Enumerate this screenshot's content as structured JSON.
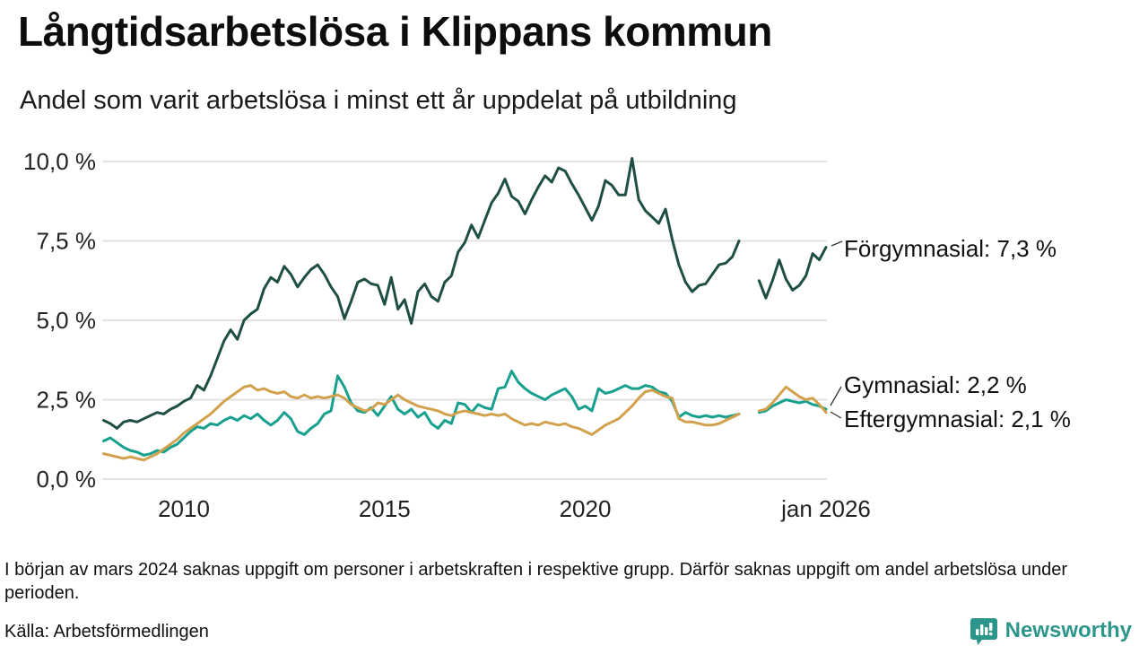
{
  "header": {
    "title": "Långtidsarbetslösa i Klippans kommun",
    "subtitle": "Andel som varit arbetslösa i minst ett år uppdelat på utbildning"
  },
  "chart_data": {
    "type": "line",
    "unit": "%",
    "x_start_year": 2008,
    "x_end_year": 2026,
    "x_step_years": 0.1666667,
    "ylim": [
      0,
      10.5
    ],
    "grid": true,
    "missing_data_period": "mars 2024",
    "x_axis_ticks": [
      {
        "label": "2010",
        "year": 2010
      },
      {
        "label": "2015",
        "year": 2015
      },
      {
        "label": "2020",
        "year": 2020
      },
      {
        "label": "jan 2026",
        "year": 2026
      }
    ],
    "y_axis_ticks": [
      {
        "label": "0,0 %",
        "value": 0
      },
      {
        "label": "2,5 %",
        "value": 2.5
      },
      {
        "label": "5,0 %",
        "value": 5
      },
      {
        "label": "7,5 %",
        "value": 7.5
      },
      {
        "label": "10,0 %",
        "value": 10
      }
    ],
    "series": [
      {
        "name": "Förgymnasial",
        "color": "#1f4f44",
        "end_label": "Förgymnasial: 7,3 %",
        "end_value": 7.3,
        "values": [
          1.85,
          1.75,
          1.6,
          1.8,
          1.85,
          1.8,
          1.9,
          2.0,
          2.1,
          2.05,
          2.2,
          2.3,
          2.45,
          2.55,
          2.95,
          2.8,
          3.25,
          3.8,
          4.35,
          4.7,
          4.4,
          5.0,
          5.2,
          5.35,
          6.0,
          6.35,
          6.2,
          6.7,
          6.45,
          6.05,
          6.35,
          6.6,
          6.75,
          6.45,
          6.05,
          5.75,
          5.05,
          5.6,
          6.2,
          6.3,
          6.15,
          6.1,
          5.5,
          6.35,
          5.35,
          5.65,
          4.9,
          5.9,
          6.15,
          5.75,
          5.6,
          6.2,
          6.4,
          7.15,
          7.45,
          8.0,
          7.6,
          8.15,
          8.7,
          9.0,
          9.45,
          8.9,
          8.75,
          8.35,
          8.8,
          9.2,
          9.55,
          9.35,
          9.8,
          9.7,
          9.3,
          8.95,
          8.55,
          8.15,
          8.6,
          9.4,
          9.25,
          8.95,
          8.95,
          10.1,
          8.8,
          8.45,
          8.25,
          8.05,
          8.5,
          7.55,
          6.75,
          6.2,
          5.9,
          6.1,
          6.15,
          6.45,
          6.75,
          6.8,
          7.0,
          7.5,
          null,
          null,
          6.25,
          5.7,
          6.25,
          6.9,
          6.3,
          5.95,
          6.1,
          6.4,
          7.1,
          6.9,
          7.3
        ]
      },
      {
        "name": "Gymnasial",
        "color": "#18a08e",
        "end_label": "Gymnasial: 2,2 %",
        "end_value": 2.2,
        "values": [
          1.2,
          1.3,
          1.15,
          1.0,
          0.9,
          0.85,
          0.75,
          0.8,
          0.9,
          0.85,
          1.0,
          1.1,
          1.3,
          1.5,
          1.65,
          1.6,
          1.75,
          1.7,
          1.85,
          1.95,
          1.85,
          2.0,
          1.9,
          2.05,
          1.85,
          1.7,
          1.85,
          2.1,
          1.9,
          1.5,
          1.4,
          1.6,
          1.75,
          2.05,
          2.15,
          3.25,
          2.9,
          2.4,
          2.15,
          2.1,
          2.25,
          2.0,
          2.3,
          2.6,
          2.2,
          2.05,
          2.2,
          1.95,
          2.1,
          1.75,
          1.6,
          1.85,
          1.75,
          2.4,
          2.35,
          2.1,
          2.35,
          2.25,
          2.2,
          2.85,
          2.9,
          3.4,
          3.05,
          2.85,
          2.7,
          2.6,
          2.5,
          2.65,
          2.75,
          2.85,
          2.6,
          2.2,
          2.3,
          2.15,
          2.85,
          2.7,
          2.75,
          2.85,
          2.95,
          2.85,
          2.85,
          2.95,
          2.9,
          2.75,
          2.7,
          2.45,
          1.95,
          2.1,
          2.0,
          1.95,
          2.0,
          1.95,
          2.0,
          1.95,
          2.0,
          2.05,
          null,
          null,
          2.1,
          2.15,
          2.3,
          2.4,
          2.5,
          2.45,
          2.4,
          2.45,
          2.35,
          2.3,
          2.2
        ]
      },
      {
        "name": "Eftergymnasial",
        "color": "#d1a14d",
        "end_label": "Eftergymnasial: 2,1 %",
        "end_value": 2.1,
        "values": [
          0.8,
          0.75,
          0.7,
          0.65,
          0.7,
          0.65,
          0.6,
          0.7,
          0.8,
          0.95,
          1.1,
          1.25,
          1.45,
          1.6,
          1.75,
          1.9,
          2.05,
          2.25,
          2.45,
          2.6,
          2.75,
          2.9,
          2.95,
          2.8,
          2.85,
          2.75,
          2.7,
          2.75,
          2.6,
          2.55,
          2.65,
          2.55,
          2.6,
          2.55,
          2.6,
          2.65,
          2.55,
          2.35,
          2.25,
          2.15,
          2.2,
          2.4,
          2.35,
          2.5,
          2.65,
          2.5,
          2.4,
          2.3,
          2.25,
          2.2,
          2.15,
          2.05,
          2.0,
          2.1,
          2.15,
          2.1,
          2.05,
          2.0,
          2.05,
          2.0,
          2.05,
          1.9,
          1.8,
          1.7,
          1.75,
          1.7,
          1.8,
          1.75,
          1.7,
          1.75,
          1.65,
          1.6,
          1.5,
          1.4,
          1.55,
          1.7,
          1.8,
          1.9,
          2.1,
          2.3,
          2.55,
          2.75,
          2.8,
          2.7,
          2.6,
          2.55,
          1.9,
          1.8,
          1.8,
          1.75,
          1.7,
          1.7,
          1.75,
          1.85,
          1.95,
          2.05,
          null,
          null,
          2.15,
          2.2,
          2.4,
          2.65,
          2.9,
          2.75,
          2.6,
          2.5,
          2.55,
          2.35,
          2.1
        ]
      }
    ]
  },
  "footer": {
    "note": "I början av mars 2024 saknas uppgift om personer i arbetskraften i respektive grupp. Därför saknas uppgift om andel arbetslösa under perioden.",
    "source": "Källa: Arbetsförmedlingen",
    "logo_text": "Newsworthy"
  },
  "colors": {
    "grid": "#e2e2e2",
    "axis_text": "#222222",
    "annotation_text": "#111111",
    "connector": "#333333",
    "brand_teal": "#2d968a"
  }
}
